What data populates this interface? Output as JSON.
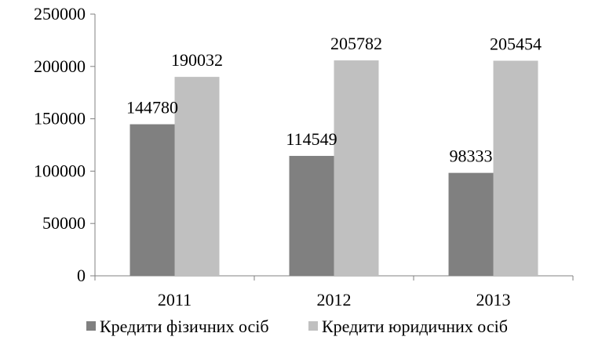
{
  "chart_data": {
    "type": "bar",
    "categories": [
      "2011",
      "2012",
      "2013"
    ],
    "series": [
      {
        "name": "Кредити фізичних осіб",
        "values": [
          144780,
          114549,
          98333
        ],
        "color": "#808080"
      },
      {
        "name": "Кредити юридичних осіб",
        "values": [
          190032,
          205782,
          205454
        ],
        "color": "#c0c0c0"
      }
    ],
    "title": "",
    "xlabel": "",
    "ylabel": "",
    "ylim": [
      0,
      250000
    ],
    "yticks": [
      "0",
      "50000",
      "100000",
      "150000",
      "200000",
      "250000"
    ],
    "grid": false,
    "legend": "bottom",
    "data_labels": [
      [
        "144780",
        "114549",
        "98333"
      ],
      [
        "190032",
        "205782",
        "205454"
      ]
    ]
  }
}
